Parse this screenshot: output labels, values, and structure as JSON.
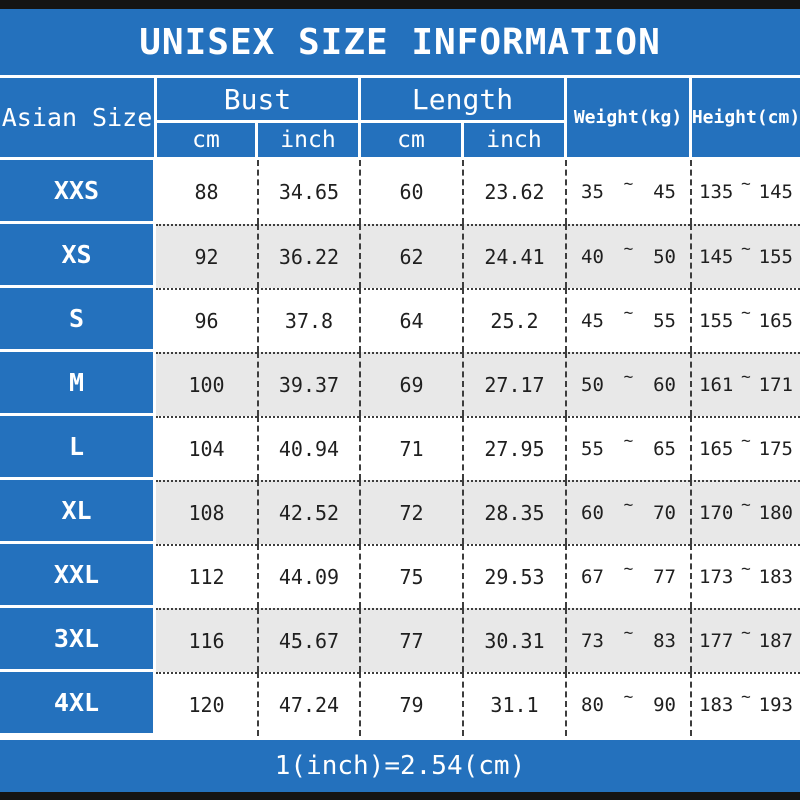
{
  "title": "UNISEX SIZE INFORMATION",
  "footer_note": "1(inch)=2.54(cm)",
  "colors": {
    "accent_blue": "#2471bd",
    "bar_black": "#141414",
    "row_alt_gray": "#e8e8e8",
    "text_dark": "#1f1f1f",
    "text_white": "#ffffff"
  },
  "table": {
    "tilde": "~",
    "headers": {
      "size_col": "Asian Size",
      "bust_group": "Bust",
      "length_group": "Length",
      "weight": "Weight(kg)",
      "height": "Height(cm)",
      "unit_cm": "cm",
      "unit_inch": "inch"
    },
    "rows": [
      {
        "size": "XXS",
        "bust_cm": "88",
        "bust_inch": "34.65",
        "length_cm": "60",
        "length_inch": "23.62",
        "weight_min": "35",
        "weight_max": "45",
        "height_min": "135",
        "height_max": "145"
      },
      {
        "size": "XS",
        "bust_cm": "92",
        "bust_inch": "36.22",
        "length_cm": "62",
        "length_inch": "24.41",
        "weight_min": "40",
        "weight_max": "50",
        "height_min": "145",
        "height_max": "155"
      },
      {
        "size": "S",
        "bust_cm": "96",
        "bust_inch": "37.8",
        "length_cm": "64",
        "length_inch": "25.2",
        "weight_min": "45",
        "weight_max": "55",
        "height_min": "155",
        "height_max": "165"
      },
      {
        "size": "M",
        "bust_cm": "100",
        "bust_inch": "39.37",
        "length_cm": "69",
        "length_inch": "27.17",
        "weight_min": "50",
        "weight_max": "60",
        "height_min": "161",
        "height_max": "171"
      },
      {
        "size": "L",
        "bust_cm": "104",
        "bust_inch": "40.94",
        "length_cm": "71",
        "length_inch": "27.95",
        "weight_min": "55",
        "weight_max": "65",
        "height_min": "165",
        "height_max": "175"
      },
      {
        "size": "XL",
        "bust_cm": "108",
        "bust_inch": "42.52",
        "length_cm": "72",
        "length_inch": "28.35",
        "weight_min": "60",
        "weight_max": "70",
        "height_min": "170",
        "height_max": "180"
      },
      {
        "size": "XXL",
        "bust_cm": "112",
        "bust_inch": "44.09",
        "length_cm": "75",
        "length_inch": "29.53",
        "weight_min": "67",
        "weight_max": "77",
        "height_min": "173",
        "height_max": "183"
      },
      {
        "size": "3XL",
        "bust_cm": "116",
        "bust_inch": "45.67",
        "length_cm": "77",
        "length_inch": "30.31",
        "weight_min": "73",
        "weight_max": "83",
        "height_min": "177",
        "height_max": "187"
      },
      {
        "size": "4XL",
        "bust_cm": "120",
        "bust_inch": "47.24",
        "length_cm": "79",
        "length_inch": "31.1",
        "weight_min": "80",
        "weight_max": "90",
        "height_min": "183",
        "height_max": "193"
      }
    ]
  }
}
